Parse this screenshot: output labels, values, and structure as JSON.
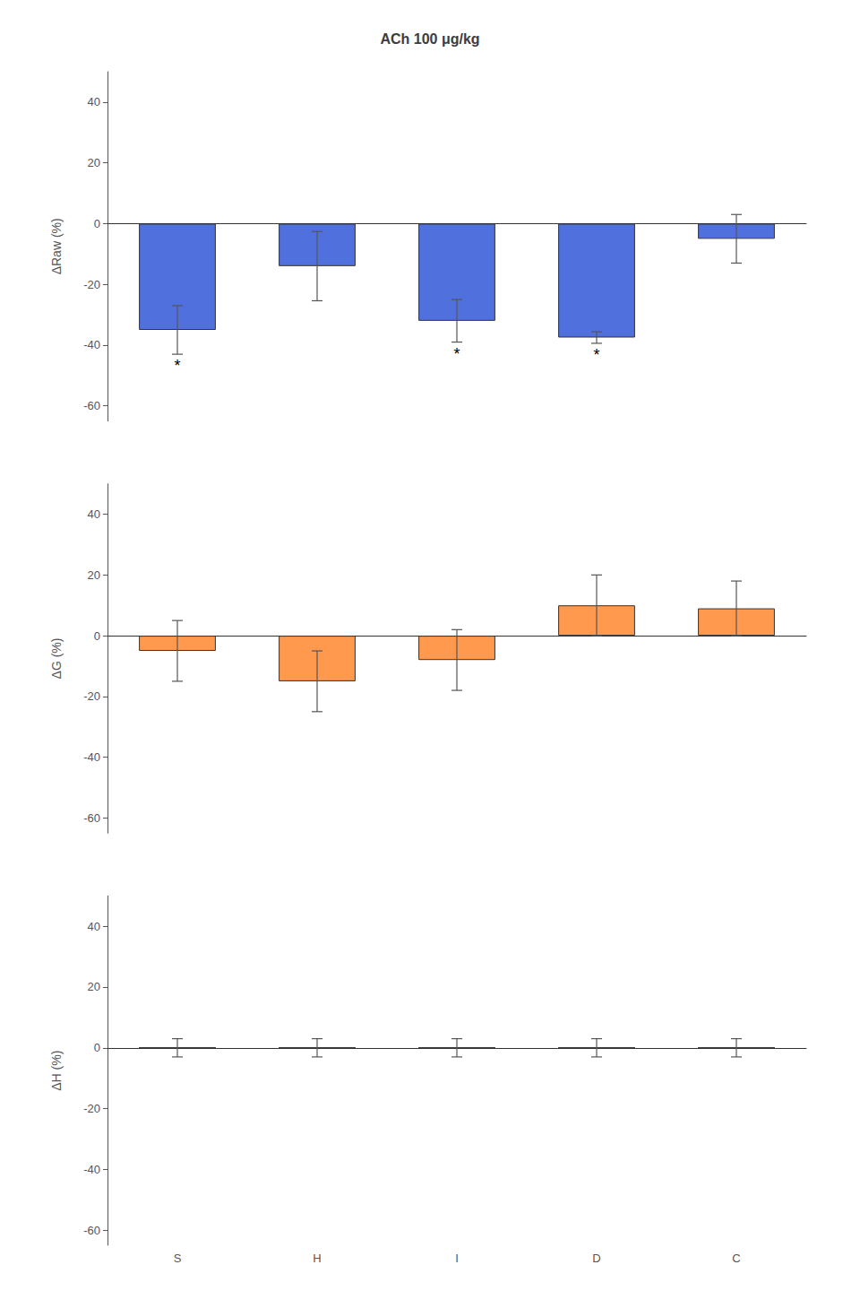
{
  "chart_data": [
    {
      "type": "bar",
      "title": "ACh 100 μg/kg",
      "categories": [
        "S",
        "H",
        "I",
        "D",
        "C"
      ],
      "values": [
        -35,
        -14,
        -32,
        -37.5,
        -5
      ],
      "errors": [
        8,
        11.4,
        7,
        1.9,
        8
      ],
      "ylabel": "ΔRaw (%)",
      "ylim": [
        -65,
        50
      ],
      "yticks": [
        -60,
        -40,
        -20,
        0,
        20,
        40
      ],
      "grid": false,
      "tick_labels": "y",
      "annotations": [
        {
          "category": "S",
          "text": "*"
        },
        {
          "category": "I",
          "text": "*"
        },
        {
          "category": "D",
          "text": "*"
        }
      ]
    },
    {
      "type": "bar",
      "categories": [
        "S",
        "H",
        "I",
        "D",
        "C"
      ],
      "values": [
        -5,
        -15,
        -8,
        10,
        9
      ],
      "errors": [
        10,
        10,
        10,
        10,
        9
      ],
      "ylabel": "ΔG (%)",
      "ylim": [
        -65,
        50
      ],
      "yticks": [
        -60,
        -40,
        -20,
        0,
        20,
        40
      ],
      "grid": false,
      "tick_labels": "y"
    },
    {
      "type": "bar",
      "categories": [
        "S",
        "H",
        "I",
        "D",
        "C"
      ],
      "values": [
        0,
        0,
        0,
        0,
        0
      ],
      "errors": [
        3,
        3,
        3,
        3,
        3
      ],
      "ylabel": "ΔH (%)",
      "ylim": [
        -65,
        50
      ],
      "yticks": [
        -60,
        -40,
        -20,
        0,
        20,
        40
      ],
      "grid": false
    }
  ]
}
